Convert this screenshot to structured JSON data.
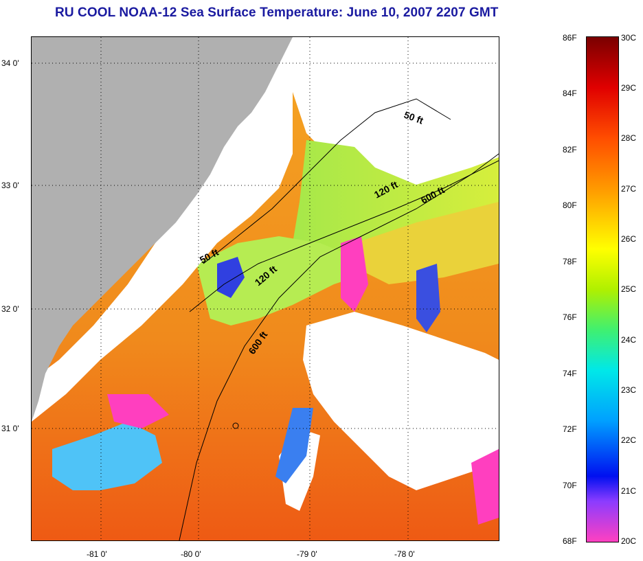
{
  "title": "RU COOL  NOAA-12  Sea Surface Temperature:  June 10, 2007 2207 GMT",
  "map": {
    "lat_labels": [
      "34 0'",
      "33 0'",
      "32 0'",
      "31 0'"
    ],
    "lon_labels": [
      "-81 0'",
      "-80 0'",
      "-79 0'",
      "-78 0'"
    ],
    "contour_labels": [
      "50 ft",
      "120 ft",
      "600 ft",
      "50 ft",
      "120 ft",
      "600 ft"
    ]
  },
  "colorbar": {
    "fahrenheit": [
      "86F",
      "84F",
      "82F",
      "80F",
      "78F",
      "76F",
      "74F",
      "72F",
      "70F",
      "68F"
    ],
    "celsius": [
      "30C",
      "29C",
      "28C",
      "27C",
      "26C",
      "25C",
      "24C",
      "23C",
      "22C",
      "21C",
      "20C"
    ]
  },
  "colors": {
    "land": "#b0b0b0",
    "title": "#1a1aa0",
    "cloud": "#ffffff"
  }
}
